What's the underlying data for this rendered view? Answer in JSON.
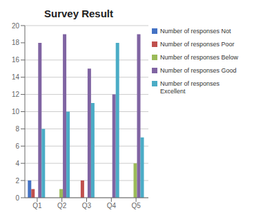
{
  "chart_data": {
    "type": "bar",
    "title": "Survey Result",
    "categories": [
      "Q1",
      "Q2",
      "Q3",
      "Q4",
      "Q5"
    ],
    "series": [
      {
        "name": "Number of responses Not",
        "color": "#4472C4",
        "values": [
          2,
          0,
          0,
          0,
          0
        ]
      },
      {
        "name": "Number of responses Poor",
        "color": "#C0504D",
        "values": [
          1,
          0,
          2,
          0,
          0
        ]
      },
      {
        "name": "Number of responses Below",
        "color": "#9BBB59",
        "values": [
          0,
          1,
          0,
          0,
          4
        ]
      },
      {
        "name": "Number of responses Good",
        "color": "#8064A2",
        "values": [
          18,
          19,
          15,
          12,
          19
        ]
      },
      {
        "name": "Number of responses\nExcellent",
        "color": "#4BACC6",
        "values": [
          8,
          10,
          11,
          18,
          7
        ]
      }
    ],
    "ylim": [
      0,
      20
    ],
    "yticks": [
      0,
      2,
      4,
      6,
      8,
      10,
      12,
      14,
      16,
      18,
      20
    ],
    "grid": true,
    "legend": "right"
  }
}
